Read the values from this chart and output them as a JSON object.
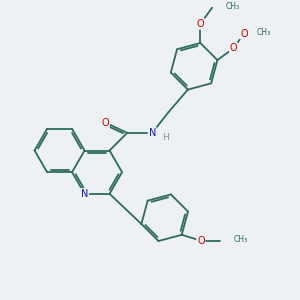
{
  "bg_color": "#edf1f3",
  "bond_color": "#2d6b5e",
  "atom_colors": {
    "N": "#1010cc",
    "O": "#cc0000",
    "C": "#2d6b5e",
    "H": "#7a9a8a"
  },
  "bond_width": 1.3,
  "dbo": 0.07,
  "xlim": [
    0,
    10
  ],
  "ylim": [
    0,
    10
  ]
}
